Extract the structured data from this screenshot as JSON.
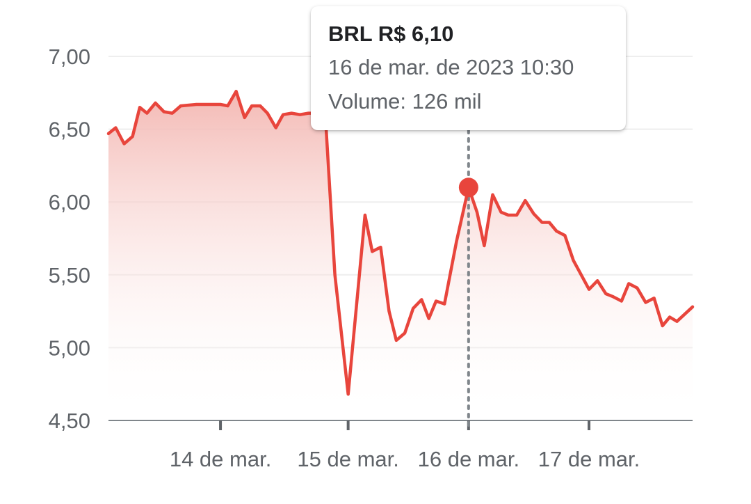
{
  "colors": {
    "line": "#e8453c",
    "fill_top": "#f3b5b0",
    "grid": "#eeeeee",
    "axis": "#80868b",
    "crosshair": "#80868b",
    "marker": "#e8453c"
  },
  "tooltip": {
    "title": "BRL R$ 6,10",
    "datetime": "16 de mar. de 2023 10:30",
    "volume": "Volume: 126 mil"
  },
  "chart_data": {
    "type": "area",
    "y_ticks": [
      {
        "value": 7.0,
        "label": "7,00"
      },
      {
        "value": 6.5,
        "label": "6,50"
      },
      {
        "value": 6.0,
        "label": "6,00"
      },
      {
        "value": 5.5,
        "label": "5,50"
      },
      {
        "value": 5.0,
        "label": "5,00"
      },
      {
        "value": 4.5,
        "label": "4,50"
      }
    ],
    "ylim": [
      4.5,
      7.0
    ],
    "xlim": [
      0,
      4.85
    ],
    "x_ticks": [
      {
        "value": 0.93,
        "label": "14 de mar."
      },
      {
        "value": 1.99,
        "label": "15 de mar."
      },
      {
        "value": 2.99,
        "label": "16 de mar."
      },
      {
        "value": 3.99,
        "label": "17 de mar."
      }
    ],
    "grid": true,
    "highlight": {
      "x": 2.99,
      "y": 6.1
    },
    "series": [
      {
        "points": [
          [
            0.0,
            6.47
          ],
          [
            0.06,
            6.51
          ],
          [
            0.13,
            6.4
          ],
          [
            0.2,
            6.45
          ],
          [
            0.26,
            6.65
          ],
          [
            0.32,
            6.61
          ],
          [
            0.39,
            6.68
          ],
          [
            0.46,
            6.62
          ],
          [
            0.53,
            6.61
          ],
          [
            0.6,
            6.66
          ],
          [
            0.73,
            6.67
          ],
          [
            0.8,
            6.67
          ],
          [
            0.93,
            6.67
          ],
          [
            0.99,
            6.66
          ],
          [
            1.06,
            6.76
          ],
          [
            1.13,
            6.58
          ],
          [
            1.19,
            6.66
          ],
          [
            1.26,
            6.66
          ],
          [
            1.32,
            6.61
          ],
          [
            1.39,
            6.51
          ],
          [
            1.45,
            6.6
          ],
          [
            1.52,
            6.61
          ],
          [
            1.59,
            6.6
          ],
          [
            1.66,
            6.61
          ],
          [
            1.73,
            6.61
          ],
          [
            1.8,
            6.6
          ],
          [
            1.88,
            5.5
          ],
          [
            1.99,
            4.68
          ],
          [
            2.13,
            5.91
          ],
          [
            2.19,
            5.66
          ],
          [
            2.26,
            5.69
          ],
          [
            2.33,
            5.25
          ],
          [
            2.39,
            5.05
          ],
          [
            2.46,
            5.1
          ],
          [
            2.53,
            5.27
          ],
          [
            2.6,
            5.33
          ],
          [
            2.66,
            5.2
          ],
          [
            2.72,
            5.32
          ],
          [
            2.79,
            5.3
          ],
          [
            2.89,
            5.73
          ],
          [
            2.99,
            6.1
          ],
          [
            3.06,
            5.93
          ],
          [
            3.12,
            5.7
          ],
          [
            3.19,
            6.05
          ],
          [
            3.26,
            5.93
          ],
          [
            3.32,
            5.91
          ],
          [
            3.39,
            5.91
          ],
          [
            3.46,
            6.01
          ],
          [
            3.53,
            5.92
          ],
          [
            3.6,
            5.86
          ],
          [
            3.66,
            5.86
          ],
          [
            3.72,
            5.8
          ],
          [
            3.79,
            5.77
          ],
          [
            3.86,
            5.6
          ],
          [
            3.99,
            5.4
          ],
          [
            4.06,
            5.46
          ],
          [
            4.13,
            5.37
          ],
          [
            4.19,
            5.35
          ],
          [
            4.26,
            5.32
          ],
          [
            4.32,
            5.44
          ],
          [
            4.39,
            5.41
          ],
          [
            4.46,
            5.31
          ],
          [
            4.53,
            5.34
          ],
          [
            4.6,
            5.15
          ],
          [
            4.66,
            5.21
          ],
          [
            4.72,
            5.18
          ],
          [
            4.85,
            5.28
          ]
        ]
      }
    ]
  }
}
